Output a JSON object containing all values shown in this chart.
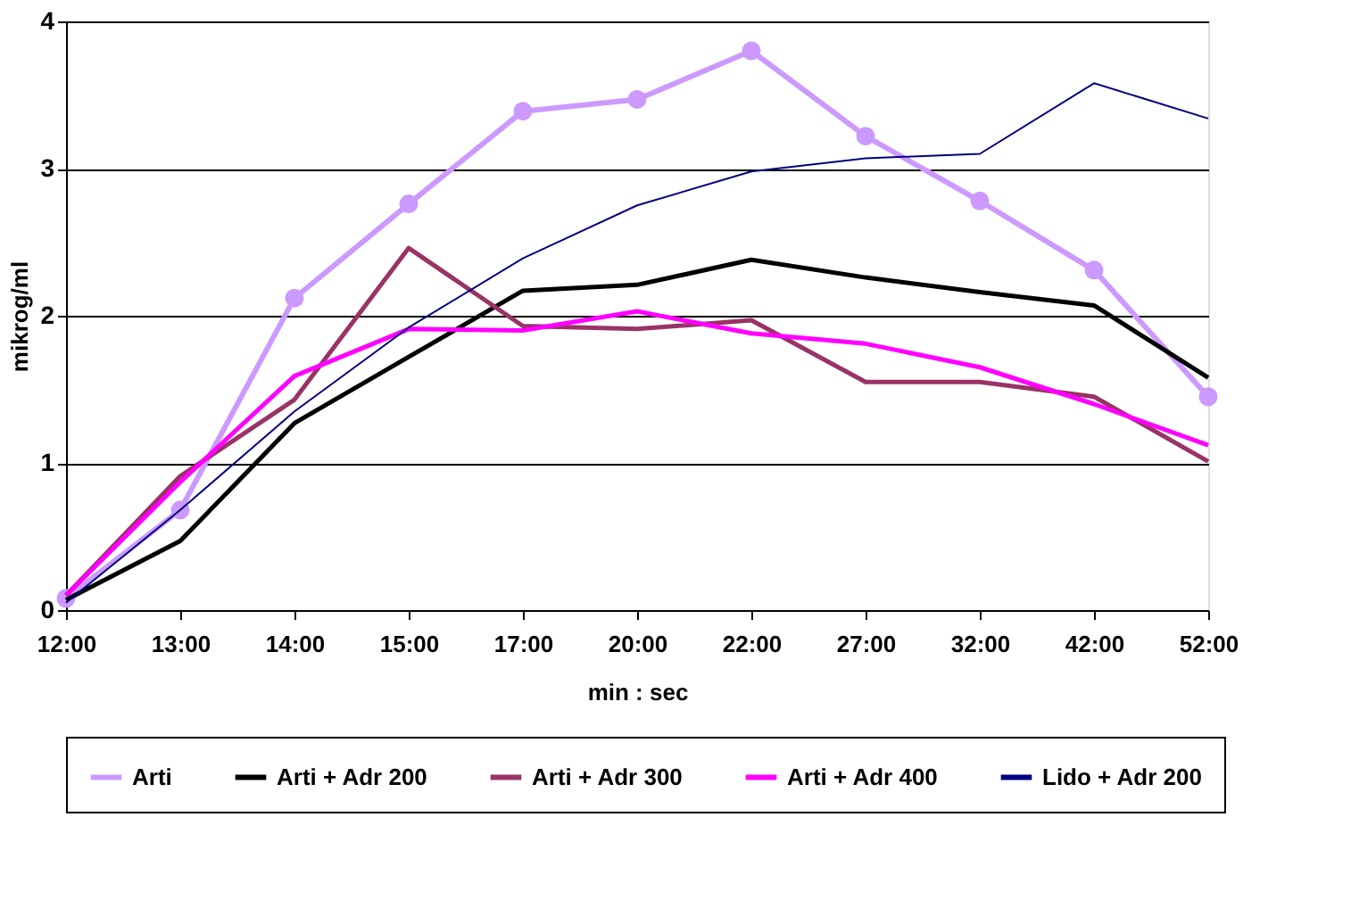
{
  "chart_data": {
    "type": "line",
    "xlabel": "min : sec",
    "ylabel": "mikrog/ml",
    "categories": [
      "12:00",
      "13:00",
      "14:00",
      "15:00",
      "17:00",
      "20:00",
      "22:00",
      "27:00",
      "32:00",
      "42:00",
      "52:00"
    ],
    "series": [
      {
        "name": "Arti",
        "color": "#cc99ff",
        "marker": "circle",
        "values": [
          0.08,
          0.68,
          2.12,
          2.76,
          3.39,
          3.47,
          3.8,
          3.22,
          2.78,
          2.31,
          1.45
        ]
      },
      {
        "name": "Arti + Adr 200",
        "color": "#000000",
        "marker": "none",
        "values": [
          0.07,
          0.47,
          1.27,
          1.72,
          2.17,
          2.21,
          2.38,
          2.26,
          2.16,
          2.07,
          1.58
        ]
      },
      {
        "name": "Arti + Adr 300",
        "color": "#993366",
        "marker": "none",
        "values": [
          0.1,
          0.91,
          1.43,
          2.46,
          1.93,
          1.91,
          1.97,
          1.55,
          1.55,
          1.45,
          1.01
        ]
      },
      {
        "name": "Arti + Adr 400",
        "color": "#ff00ff",
        "marker": "none",
        "values": [
          0.1,
          0.87,
          1.59,
          1.91,
          1.9,
          2.03,
          1.88,
          1.81,
          1.65,
          1.4,
          1.12
        ]
      },
      {
        "name": "Lido + Adr 200",
        "color": "#000080",
        "marker": "none",
        "values": [
          0.05,
          0.68,
          1.35,
          1.92,
          2.39,
          2.75,
          2.98,
          3.07,
          3.1,
          3.58,
          3.34
        ]
      }
    ],
    "ylim": [
      0,
      4
    ],
    "yticks": [
      0,
      1,
      2,
      3,
      4
    ],
    "grid": "y",
    "legend": "bottom",
    "line_style": "solid"
  }
}
